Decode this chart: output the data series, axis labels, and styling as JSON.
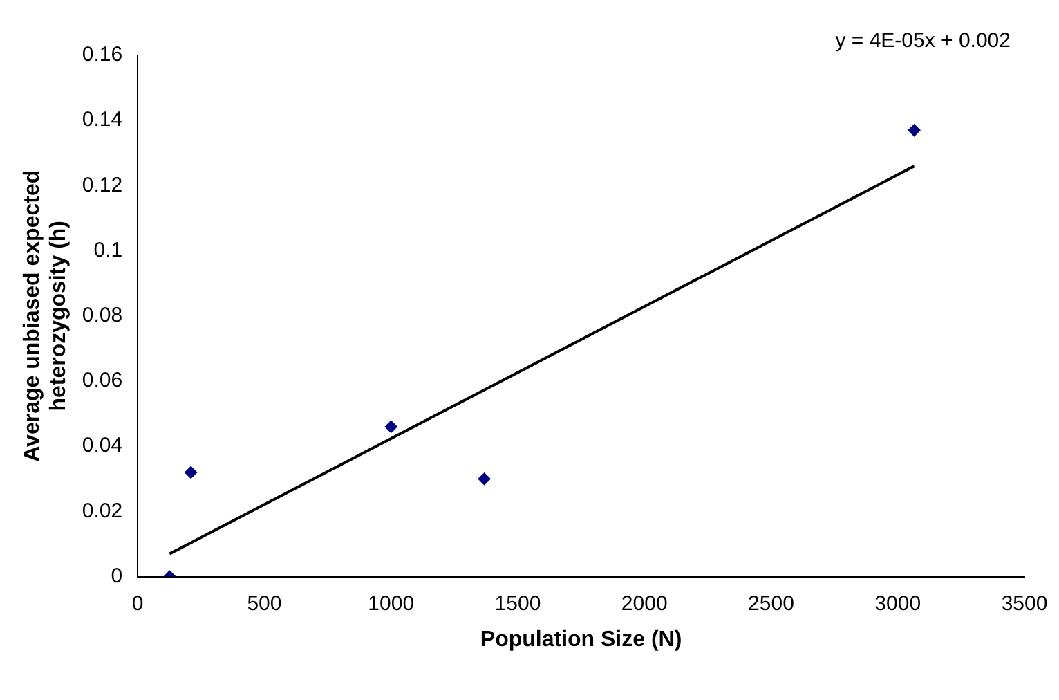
{
  "chart_data": {
    "type": "scatter",
    "xlabel": "Population Size (N)",
    "ylabel": "Average unbiased expected heterozygosity (h)",
    "series": [
      {
        "type": "scatter",
        "color": "#000080",
        "x": [
          126,
          210,
          1000,
          1368,
          3065
        ],
        "values": [
          0,
          0.032,
          0.046,
          0.03,
          0.137
        ],
        "marker": "diamond"
      },
      {
        "type": "line",
        "color": "#000000",
        "x": [
          126,
          3065
        ],
        "values": [
          0.007,
          0.126
        ],
        "marker": "none"
      }
    ],
    "annotations": [
      "y = 4E-05x + 0.002"
    ],
    "xlim": [
      0,
      3500
    ],
    "xticks": [
      0,
      500,
      1000,
      1500,
      2000,
      2500,
      3000,
      3500
    ],
    "ylim": [
      0,
      0.16
    ],
    "yticks": [
      0,
      0.02,
      0.04,
      0.06,
      0.08,
      0.1,
      0.12,
      0.14,
      0.16
    ],
    "grid": false,
    "legend": false
  }
}
